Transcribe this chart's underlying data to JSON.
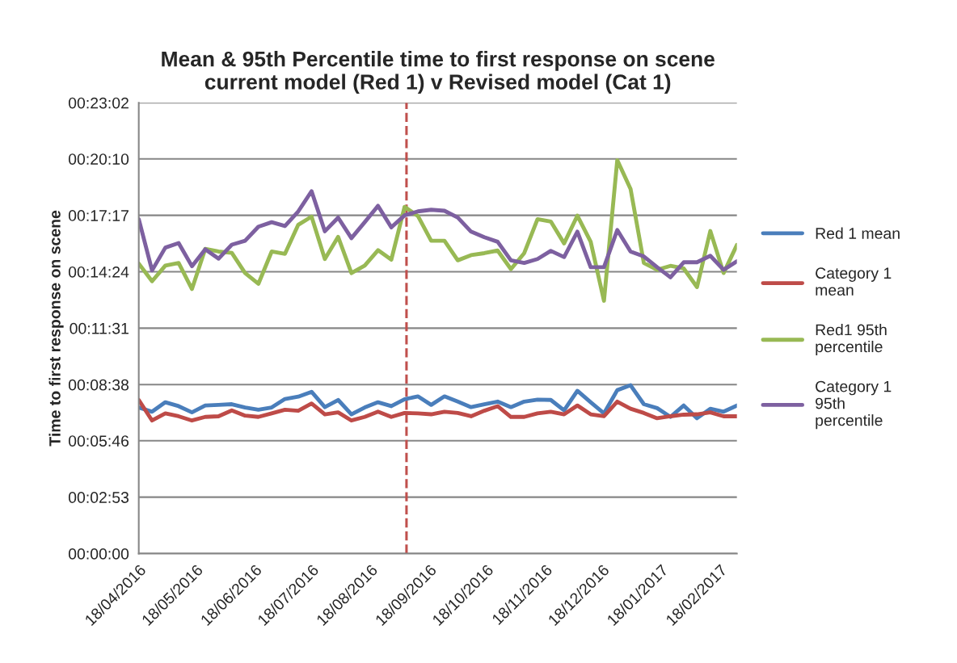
{
  "chart_data": {
    "type": "line",
    "title": "Mean & 95th Percentile time to first response on scene\ncurrent model (Red 1) v Revised model (Cat 1)",
    "ylabel": "Time to first response on scene",
    "x": [
      "2016-04-18",
      "2016-04-25",
      "2016-05-02",
      "2016-05-09",
      "2016-05-16",
      "2016-05-23",
      "2016-05-30",
      "2016-06-06",
      "2016-06-13",
      "2016-06-20",
      "2016-06-27",
      "2016-07-04",
      "2016-07-11",
      "2016-07-18",
      "2016-07-25",
      "2016-08-01",
      "2016-08-08",
      "2016-08-15",
      "2016-08-22",
      "2016-08-29",
      "2016-09-05",
      "2016-09-12",
      "2016-09-19",
      "2016-09-26",
      "2016-10-03",
      "2016-10-10",
      "2016-10-17",
      "2016-10-24",
      "2016-10-31",
      "2016-11-07",
      "2016-11-14",
      "2016-11-21",
      "2016-11-28",
      "2016-12-05",
      "2016-12-12",
      "2016-12-19",
      "2016-12-26",
      "2017-01-02",
      "2017-01-09",
      "2017-01-16",
      "2017-01-23",
      "2017-01-30",
      "2017-02-06",
      "2017-02-13",
      "2017-02-20",
      "2017-02-27"
    ],
    "series": [
      {
        "name": "Red 1 mean",
        "color": "#4a7ebb",
        "values": [
          448,
          435,
          464,
          452,
          433,
          454,
          456,
          458,
          448,
          441,
          448,
          474,
          481,
          496,
          449,
          471,
          427,
          448,
          464,
          452,
          473,
          482,
          456,
          482,
          466,
          449,
          458,
          466,
          449,
          466,
          472,
          471,
          439,
          499,
          464,
          430,
          501,
          516,
          458,
          446,
          419,
          454,
          415,
          444,
          435,
          454
        ]
      },
      {
        "name": "Category 1\nmean",
        "color": "#be4b48",
        "values": [
          471,
          408,
          430,
          421,
          408,
          419,
          421,
          439,
          423,
          419,
          430,
          441,
          438,
          460,
          427,
          433,
          408,
          419,
          435,
          419,
          431,
          430,
          427,
          435,
          431,
          421,
          438,
          452,
          419,
          419,
          430,
          435,
          427,
          454,
          427,
          421,
          466,
          444,
          431,
          415,
          421,
          426,
          427,
          433,
          421,
          421
        ]
      },
      {
        "name": "Red1 95th\npercentile",
        "color": "#98b954",
        "values": [
          889,
          835,
          883,
          891,
          811,
          934,
          926,
          922,
          860,
          827,
          926,
          919,
          1008,
          1033,
          903,
          971,
          860,
          883,
          930,
          901,
          1063,
          1035,
          959,
          959,
          899,
          915,
          921,
          929,
          872,
          921,
          1025,
          1018,
          951,
          1036,
          956,
          775,
          1206,
          1118,
          891,
          870,
          882,
          874,
          817,
          989,
          860,
          946
        ]
      },
      {
        "name": "Category 1\n95th\npercentile",
        "color": "#7d60a0",
        "values": [
          1025,
          868,
          938,
          952,
          881,
          933,
          904,
          947,
          959,
          1002,
          1016,
          1004,
          1049,
          1111,
          988,
          1030,
          967,
          1016,
          1066,
          1000,
          1037,
          1049,
          1054,
          1051,
          1030,
          987,
          970,
          956,
          899,
          891,
          903,
          928,
          909,
          987,
          878,
          878,
          992,
          926,
          911,
          878,
          847,
          893,
          893,
          913,
          870,
          896
        ]
      }
    ],
    "xlim": [
      "2016-04-18",
      "2017-02-27"
    ],
    "xticks": [
      {
        "value": "2016-04-18",
        "label": "18/04/2016"
      },
      {
        "value": "2016-05-18",
        "label": "18/05/2016"
      },
      {
        "value": "2016-06-18",
        "label": "18/06/2016"
      },
      {
        "value": "2016-07-18",
        "label": "18/07/2016"
      },
      {
        "value": "2016-08-18",
        "label": "18/08/2016"
      },
      {
        "value": "2016-09-18",
        "label": "18/09/2016"
      },
      {
        "value": "2016-10-18",
        "label": "18/10/2016"
      },
      {
        "value": "2016-11-18",
        "label": "18/11/2016"
      },
      {
        "value": "2016-12-18",
        "label": "18/12/2016"
      },
      {
        "value": "2017-01-18",
        "label": "18/01/2017"
      },
      {
        "value": "2017-02-18",
        "label": "18/02/2017"
      }
    ],
    "ylim": [
      0,
      1382
    ],
    "yticks": [
      {
        "value": 0,
        "label": "00:00:00"
      },
      {
        "value": 173,
        "label": "00:02:53"
      },
      {
        "value": 346,
        "label": "00:05:46"
      },
      {
        "value": 518,
        "label": "00:08:38"
      },
      {
        "value": 691,
        "label": "00:11:31"
      },
      {
        "value": 864,
        "label": "00:14:24"
      },
      {
        "value": 1037,
        "label": "00:17:17"
      },
      {
        "value": 1210,
        "label": "00:20:10"
      },
      {
        "value": 1382,
        "label": "00:23:02"
      }
    ],
    "ref_lines": [
      {
        "axis": "x",
        "value": "2016-09-06",
        "color": "#c0504d",
        "line_style": "dashed"
      }
    ],
    "grid": "y",
    "legend": "right",
    "line_style": "solid"
  }
}
